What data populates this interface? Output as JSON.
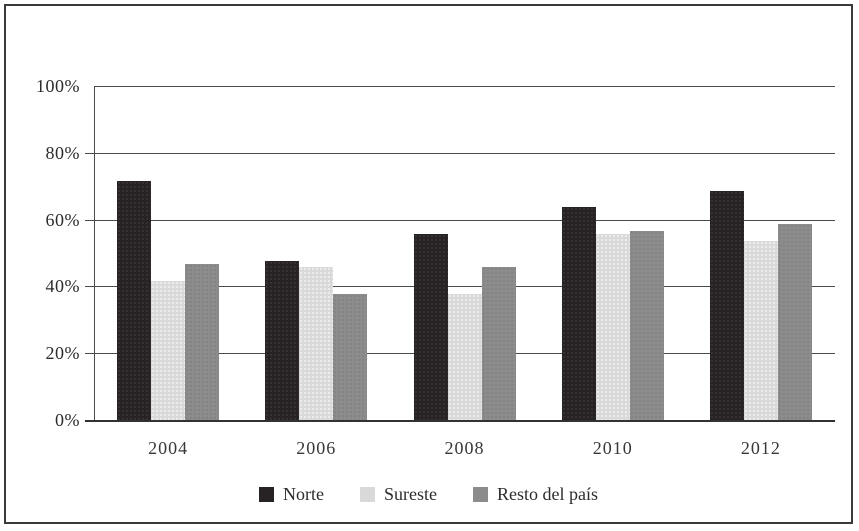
{
  "figure": {
    "background": "#ffffff",
    "frame_color": "#3a3a3a",
    "gridline_color": "#4a4a4a"
  },
  "chart_data": {
    "type": "bar",
    "title": "",
    "xlabel": "",
    "ylabel": "",
    "categories": [
      "2004",
      "2006",
      "2008",
      "2010",
      "2012"
    ],
    "series": [
      {
        "name": "Norte",
        "color": "#272324",
        "values": [
          72,
          48,
          56,
          64,
          69
        ]
      },
      {
        "name": "Sureste",
        "color": "#d9d9d9",
        "values": [
          42,
          46,
          38,
          56,
          54
        ]
      },
      {
        "name": "Resto del país",
        "color": "#8c8c8c",
        "values": [
          47,
          38,
          46,
          57,
          59
        ]
      }
    ],
    "ylim": [
      0,
      100
    ],
    "ytick_values": [
      100,
      80,
      60,
      40,
      20,
      0
    ],
    "ytick_labels": [
      "100%",
      "80%",
      "60%",
      "40%",
      "20%",
      "0%"
    ],
    "grid": "horizontal",
    "legend_position": "bottom",
    "value_format": "percent"
  }
}
